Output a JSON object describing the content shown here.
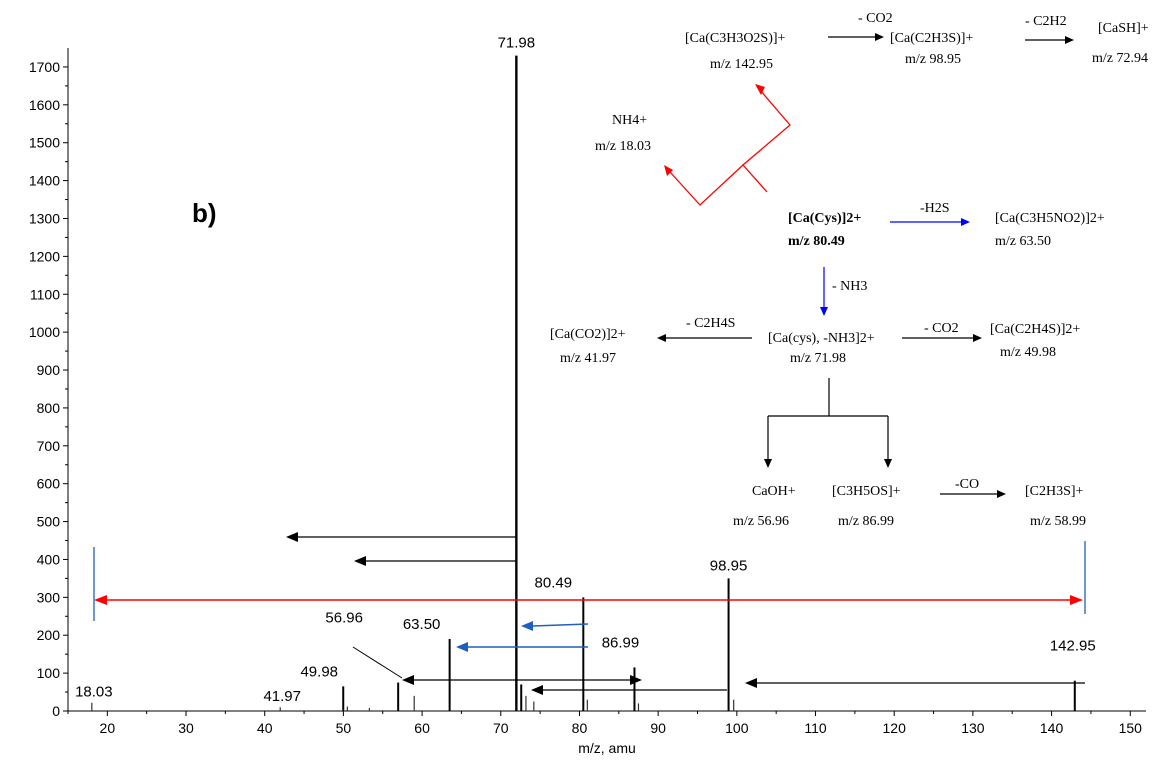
{
  "panel_label": "b)",
  "chart_data": {
    "type": "bar",
    "xlabel": "m/z, amu",
    "ylabel": "",
    "xlim": [
      15,
      152
    ],
    "ylim": [
      0,
      1750
    ],
    "xticks": [
      20,
      30,
      40,
      50,
      60,
      70,
      80,
      90,
      100,
      110,
      120,
      130,
      140,
      150
    ],
    "yticks": [
      0,
      100,
      200,
      300,
      400,
      500,
      600,
      700,
      800,
      900,
      1000,
      1100,
      1200,
      1300,
      1400,
      1500,
      1600,
      1700
    ],
    "peaks": [
      {
        "x": 18.03,
        "y": 22
      },
      {
        "x": 41.97,
        "y": 10
      },
      {
        "x": 49.98,
        "y": 65
      },
      {
        "x": 50.5,
        "y": 12
      },
      {
        "x": 53.3,
        "y": 8
      },
      {
        "x": 56.96,
        "y": 75
      },
      {
        "x": 59.0,
        "y": 40
      },
      {
        "x": 63.5,
        "y": 190
      },
      {
        "x": 71.98,
        "y": 1730
      },
      {
        "x": 72.6,
        "y": 70
      },
      {
        "x": 73.2,
        "y": 40
      },
      {
        "x": 74.2,
        "y": 25
      },
      {
        "x": 80.49,
        "y": 300
      },
      {
        "x": 81.0,
        "y": 30
      },
      {
        "x": 86.99,
        "y": 115
      },
      {
        "x": 87.5,
        "y": 20
      },
      {
        "x": 98.95,
        "y": 350
      },
      {
        "x": 99.6,
        "y": 30
      },
      {
        "x": 142.95,
        "y": 80
      }
    ],
    "peak_labels": [
      {
        "text": "18.03",
        "x": 18.03,
        "y": 22
      },
      {
        "text": "41.97",
        "x": 41.97,
        "y": 10
      },
      {
        "text": "49.98",
        "x": 49.98,
        "y": 65
      },
      {
        "text": "56.96",
        "x": 56.96,
        "y": 75
      },
      {
        "text": "63.50",
        "x": 63.5,
        "y": 190
      },
      {
        "text": "71.98",
        "x": 71.98,
        "y": 1730
      },
      {
        "text": "80.49",
        "x": 80.49,
        "y": 300
      },
      {
        "text": "86.99",
        "x": 86.99,
        "y": 115
      },
      {
        "text": "98.95",
        "x": 98.95,
        "y": 350
      },
      {
        "text": "142.95",
        "x": 142.95,
        "y": 80
      }
    ]
  },
  "scheme": {
    "ion_142": "[Ca(C3H3O2S)]+",
    "mz_142": "m/z 142.95",
    "loss_co2_1": "- CO2",
    "ion_98": "[Ca(C2H3S)]+",
    "mz_98": "m/z 98.95",
    "loss_c2h2": "- C2H2",
    "ion_72_94": "[CaSH]+",
    "mz_72_94": "m/z 72.94",
    "ion_nh4": "NH4+",
    "mz_18": "m/z 18.03",
    "ion_parent": "[Ca(Cys)]2+",
    "mz_parent": "m/z 80.49",
    "loss_h2s": "-H2S",
    "ion_63": "[Ca(C3H5NO2)]2+",
    "mz_63": "m/z 63.50",
    "loss_nh3": "- NH3",
    "ion_71": "[Ca(cys), -NH3]2+",
    "mz_71": "m/z 71.98",
    "loss_c2h4s": "- C2H4S",
    "ion_41": "[Ca(CO2)]2+",
    "mz_41": "m/z 41.97",
    "loss_co2_2": "- CO2",
    "ion_49": "[Ca(C2H4S)]2+",
    "mz_49": "m/z 49.98",
    "ion_56": "CaOH+",
    "mz_56": "m/z 56.96",
    "ion_86": "[C3H5OS]+",
    "mz_86": "m/z 86.99",
    "loss_co": "-CO",
    "ion_58": "[C2H3S]+",
    "mz_58": "m/z 58.99"
  },
  "colors": {
    "peak": "#000000",
    "red_arrow": "#ff0000",
    "blue_line": "#1f5fbf",
    "blue_arrow": "#0000ff"
  }
}
